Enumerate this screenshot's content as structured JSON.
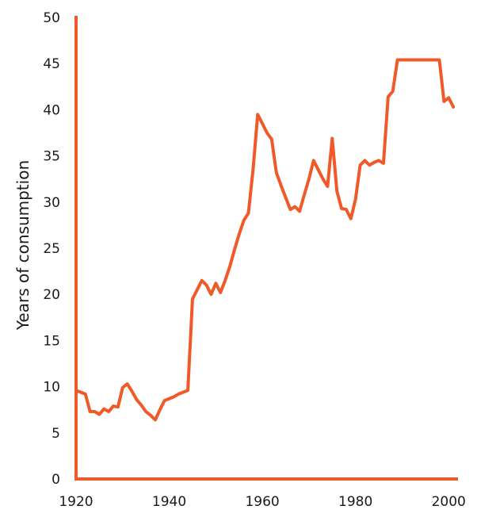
{
  "chart_data": {
    "type": "line",
    "title": "",
    "xlabel": "",
    "ylabel": "Years of consumption",
    "xlim": [
      1920,
      2002
    ],
    "ylim": [
      0,
      50
    ],
    "x_ticks": [
      1920,
      1940,
      1960,
      1980,
      2000
    ],
    "y_ticks": [
      0,
      5,
      10,
      15,
      20,
      25,
      30,
      35,
      40,
      45,
      50
    ],
    "grid": false,
    "colors": {
      "line": "#f05a28",
      "axis": "#f05a28",
      "text": "#1a1a1a"
    },
    "series": [
      {
        "x": [
          1920,
          1921,
          1922,
          1923,
          1924,
          1925,
          1926,
          1927,
          1928,
          1929,
          1930,
          1931,
          1932,
          1933,
          1934,
          1935,
          1936,
          1937,
          1938,
          1939,
          1940,
          1941,
          1942,
          1943,
          1944,
          1945,
          1946,
          1947,
          1948,
          1949,
          1950,
          1951,
          1952,
          1953,
          1954,
          1955,
          1956,
          1957,
          1958,
          1959,
          1960,
          1961,
          1962,
          1963,
          1964,
          1965,
          1966,
          1967,
          1968,
          1969,
          1970,
          1971,
          1972,
          1973,
          1974,
          1975,
          1976,
          1977,
          1978,
          1979,
          1980,
          1981,
          1982,
          1983,
          1984,
          1985,
          1986,
          1987,
          1988,
          1989,
          1990,
          1991,
          1992,
          1993,
          1994,
          1995,
          1996,
          1997,
          1998,
          1999,
          2000,
          2001
        ],
        "y": [
          9.6,
          9.4,
          9.2,
          7.3,
          7.3,
          7.0,
          7.6,
          7.3,
          7.9,
          7.8,
          9.9,
          10.3,
          9.5,
          8.6,
          8.0,
          7.3,
          6.9,
          6.4,
          7.5,
          8.5,
          8.7,
          8.9,
          9.2,
          9.4,
          9.6,
          19.5,
          20.5,
          21.5,
          21.0,
          20.0,
          21.2,
          20.2,
          21.5,
          23.0,
          24.8,
          26.5,
          28.0,
          28.8,
          33.5,
          39.5,
          38.5,
          37.5,
          36.8,
          33.2,
          31.8,
          30.5,
          29.2,
          29.5,
          29.0,
          30.8,
          32.5,
          34.5,
          33.5,
          32.5,
          31.7,
          36.9,
          31.2,
          29.3,
          29.2,
          28.2,
          30.3,
          34.0,
          34.5,
          34.0,
          34.3,
          34.5,
          34.2,
          41.4,
          42.0,
          45.4,
          45.4,
          45.4,
          45.4,
          45.4,
          45.4,
          45.4,
          45.4,
          45.4,
          45.4,
          40.9,
          41.3,
          40.3
        ]
      }
    ]
  }
}
